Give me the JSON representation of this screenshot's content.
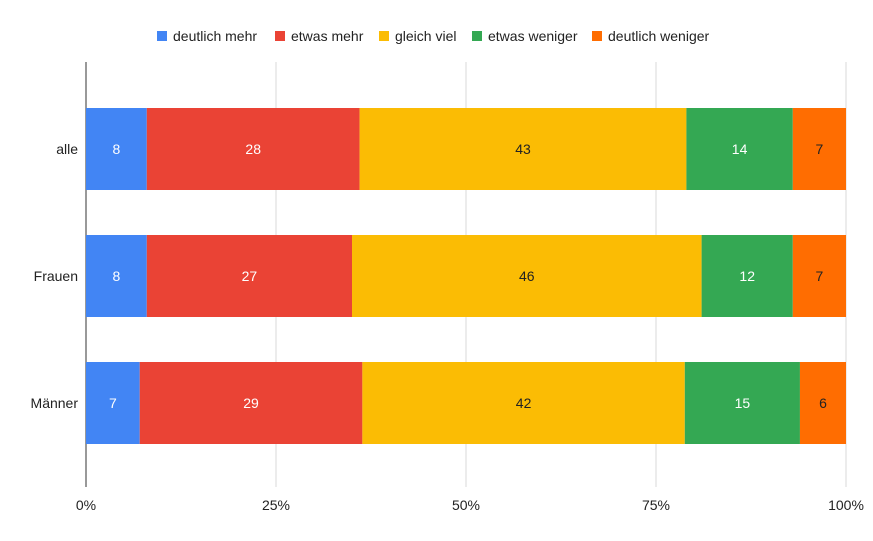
{
  "chart_data": {
    "type": "bar",
    "orientation": "horizontal",
    "stacked": "percent",
    "categories": [
      "alle",
      "Frauen",
      "Männer"
    ],
    "series": [
      {
        "name": "deutlich mehr",
        "color": "#4285f4",
        "values": [
          8,
          8,
          7
        ]
      },
      {
        "name": "etwas mehr",
        "color": "#ea4335",
        "values": [
          28,
          27,
          29
        ]
      },
      {
        "name": "gleich viel",
        "color": "#fbbc04",
        "values": [
          43,
          46,
          42
        ]
      },
      {
        "name": "etwas weniger",
        "color": "#34a853",
        "values": [
          14,
          12,
          15
        ]
      },
      {
        "name": "deutlich weniger",
        "color": "#ff6d01",
        "values": [
          7,
          7,
          6
        ]
      }
    ],
    "x_ticks": [
      "0%",
      "25%",
      "50%",
      "75%",
      "100%"
    ],
    "xlim": [
      0,
      100
    ],
    "grid": true,
    "legend_position": "top"
  }
}
